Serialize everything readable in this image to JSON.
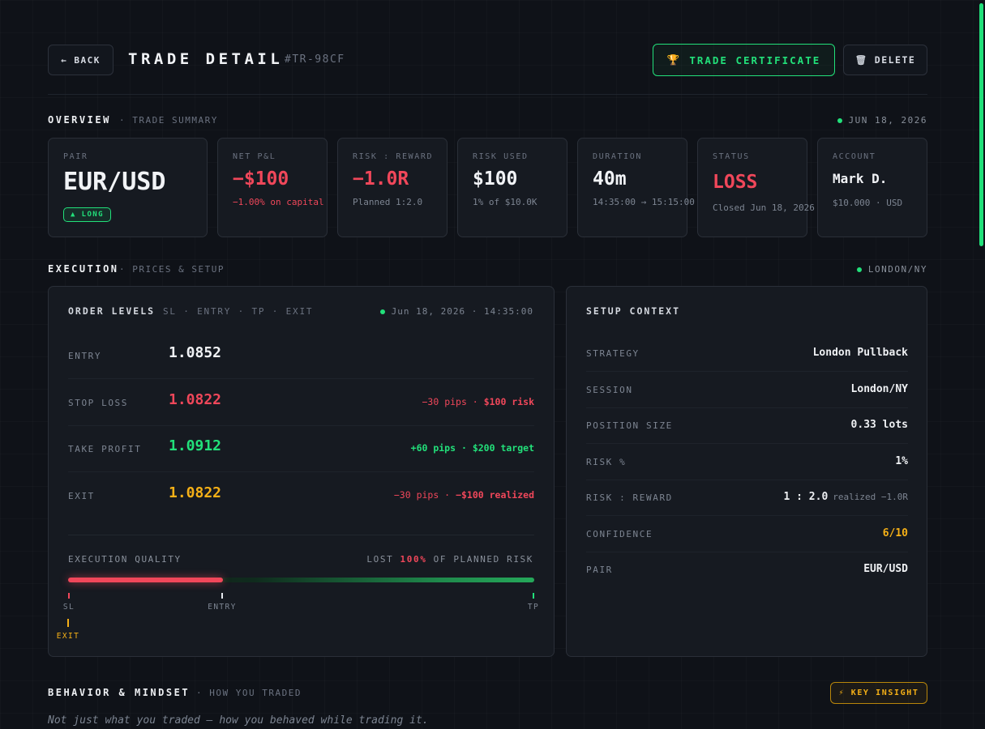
{
  "header": {
    "back_label": "← BACK",
    "title": "TRADE DETAIL",
    "trade_id": "#TR-98CF",
    "certificate_icon": "🏆",
    "certificate_label": "TRADE CERTIFICATE",
    "delete_icon": "🗑",
    "delete_label": "DELETE"
  },
  "overview": {
    "title": "OVERVIEW",
    "subtitle": "· TRADE SUMMARY",
    "date": "JUN 18, 2026",
    "cards": {
      "pair": {
        "label": "PAIR",
        "value": "EUR/USD",
        "badge": "▲ LONG"
      },
      "pnl": {
        "label": "NET P&L",
        "value": "−$100",
        "sub": "−1.00% on capital"
      },
      "rr": {
        "label": "RISK : REWARD",
        "value": "−1.0R",
        "sub": "Planned 1:2.0"
      },
      "risk": {
        "label": "RISK USED",
        "value": "$100",
        "sub": "1% of $10.0K"
      },
      "duration": {
        "label": "DURATION",
        "value": "40m",
        "sub": "14:35:00 → 15:15:00"
      },
      "status": {
        "label": "STATUS",
        "value": "LOSS",
        "sub": "Closed Jun 18, 2026"
      },
      "account": {
        "label": "ACCOUNT",
        "value": "Mark D.",
        "sub": "$10.000 · USD"
      }
    }
  },
  "execution": {
    "title": "EXECUTION",
    "subtitle": "· PRICES & SETUP",
    "session": "LONDON/NY",
    "order_levels": {
      "title": "ORDER LEVELS",
      "subtitle": "SL · ENTRY · TP · EXIT",
      "timestamp": "Jun 18, 2026 · 14:35:00",
      "rows": [
        {
          "label": "ENTRY",
          "value": "1.0852",
          "note_pips": "",
          "note_amount": ""
        },
        {
          "label": "STOP LOSS",
          "value": "1.0822",
          "note_pips": "−30 pips ·",
          "note_amount": "$100 risk"
        },
        {
          "label": "TAKE PROFIT",
          "value": "1.0912",
          "note_pips": "+60 pips ·",
          "note_amount": "$200 target"
        },
        {
          "label": "EXIT",
          "value": "1.0822",
          "note_pips": "−30 pips ·",
          "note_amount": "−$100 realized"
        }
      ],
      "quality_label": "EXECUTION QUALITY",
      "quality_prefix": "LOST",
      "quality_pct": "100%",
      "quality_suffix": "OF PLANNED RISK",
      "quality_fraction_of_range": 0.333,
      "markers": {
        "sl": "SL",
        "entry": "ENTRY",
        "tp": "TP",
        "exit": "EXIT"
      }
    },
    "setup_context": {
      "title": "SETUP CONTEXT",
      "rows": [
        {
          "label": "STRATEGY",
          "value": "London Pullback",
          "extra": ""
        },
        {
          "label": "SESSION",
          "value": "London/NY",
          "extra": ""
        },
        {
          "label": "POSITION SIZE",
          "value": "0.33 lots",
          "extra": ""
        },
        {
          "label": "RISK %",
          "value": "1%",
          "extra": ""
        },
        {
          "label": "RISK : REWARD",
          "value": "1 : 2.0",
          "extra": "realized −1.0R"
        },
        {
          "label": "CONFIDENCE",
          "value": "6/10",
          "extra": ""
        },
        {
          "label": "PAIR",
          "value": "EUR/USD",
          "extra": ""
        }
      ]
    }
  },
  "behavior": {
    "title": "BEHAVIOR & MINDSET",
    "subtitle": "· HOW YOU TRADED",
    "insight_label": "⚡ KEY INSIGHT",
    "tagline": "Not just what you traded — how you behaved while trading it."
  },
  "colors": {
    "accent": "#22e07a",
    "loss": "#f0475a",
    "exit": "#f5b017",
    "background": "#0f1218"
  }
}
